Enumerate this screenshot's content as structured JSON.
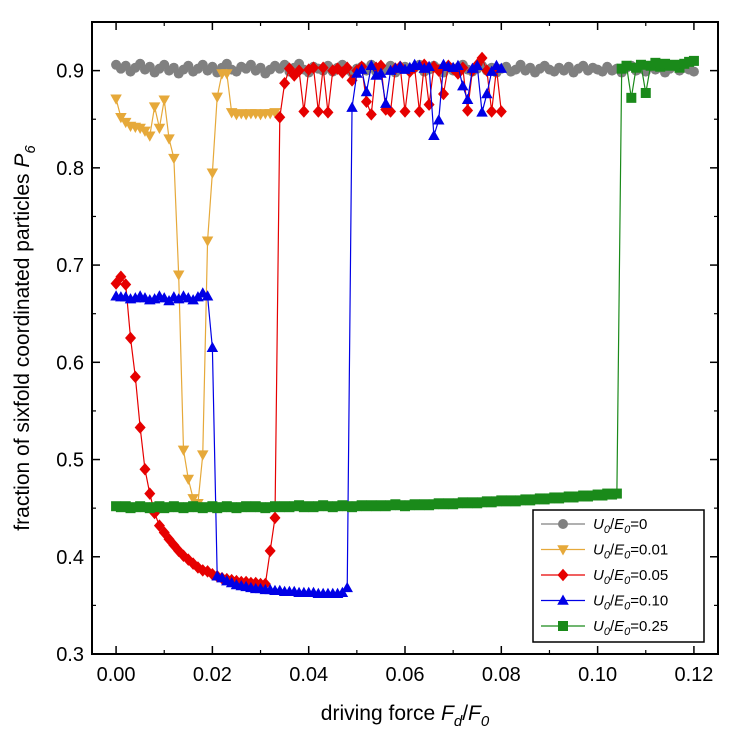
{
  "chart_data": {
    "type": "scatter",
    "xlabel": {
      "prefix": "driving force ",
      "main1": "F",
      "sub1": "d",
      "slash": "/",
      "main2": "F",
      "sub2": "0"
    },
    "ylabel": {
      "prefix": "fraction of sixfold coordinated particles ",
      "main": "P",
      "sub": "6"
    },
    "xlim": [
      -0.005,
      0.125
    ],
    "ylim": [
      0.3,
      0.95
    ],
    "xticks": [
      "0.00",
      "0.02",
      "0.04",
      "0.06",
      "0.08",
      "0.10",
      "0.12"
    ],
    "yticks": [
      "0.3",
      "0.4",
      "0.5",
      "0.6",
      "0.7",
      "0.8",
      "0.9"
    ],
    "legend_position": "bottom-right",
    "series": [
      {
        "name": "U0/E0=0",
        "legend": {
          "a": "U",
          "as": "0",
          "b": "E",
          "bs": "0",
          "val": "=0"
        },
        "color": "#808080",
        "marker": "circle",
        "x": [
          0.0,
          0.001,
          0.002,
          0.003,
          0.004,
          0.005,
          0.006,
          0.007,
          0.008,
          0.009,
          0.01,
          0.011,
          0.012,
          0.013,
          0.014,
          0.015,
          0.016,
          0.017,
          0.018,
          0.019,
          0.02,
          0.021,
          0.022,
          0.023,
          0.024,
          0.025,
          0.026,
          0.027,
          0.028,
          0.029,
          0.03,
          0.031,
          0.032,
          0.033,
          0.034,
          0.035,
          0.036,
          0.037,
          0.038,
          0.039,
          0.04,
          0.041,
          0.042,
          0.043,
          0.044,
          0.045,
          0.046,
          0.047,
          0.048,
          0.049,
          0.05,
          0.051,
          0.052,
          0.053,
          0.054,
          0.055,
          0.056,
          0.057,
          0.058,
          0.059,
          0.06,
          0.061,
          0.062,
          0.063,
          0.064,
          0.065,
          0.066,
          0.067,
          0.068,
          0.069,
          0.07,
          0.071,
          0.072,
          0.073,
          0.074,
          0.075,
          0.076,
          0.077,
          0.078,
          0.079,
          0.08,
          0.081,
          0.082,
          0.083,
          0.084,
          0.085,
          0.086,
          0.087,
          0.088,
          0.089,
          0.09,
          0.091,
          0.092,
          0.093,
          0.094,
          0.095,
          0.096,
          0.097,
          0.098,
          0.099,
          0.1,
          0.101,
          0.102,
          0.103,
          0.104,
          0.105,
          0.106,
          0.107,
          0.108,
          0.109,
          0.11,
          0.111,
          0.112,
          0.113,
          0.114,
          0.115,
          0.116,
          0.117,
          0.118,
          0.119,
          0.12
        ],
        "y": [
          0.906,
          0.902,
          0.905,
          0.899,
          0.903,
          0.907,
          0.901,
          0.904,
          0.898,
          0.902,
          0.906,
          0.9,
          0.903,
          0.897,
          0.901,
          0.905,
          0.899,
          0.902,
          0.906,
          0.9,
          0.904,
          0.898,
          0.903,
          0.907,
          0.901,
          0.899,
          0.904,
          0.902,
          0.906,
          0.9,
          0.903,
          0.897,
          0.901,
          0.905,
          0.902,
          0.906,
          0.899,
          0.903,
          0.907,
          0.901,
          0.898,
          0.904,
          0.902,
          0.9,
          0.905,
          0.899,
          0.903,
          0.906,
          0.901,
          0.898,
          0.902,
          0.904,
          0.9,
          0.906,
          0.899,
          0.903,
          0.901,
          0.905,
          0.898,
          0.902,
          0.904,
          0.9,
          0.903,
          0.906,
          0.899,
          0.901,
          0.905,
          0.902,
          0.898,
          0.904,
          0.9,
          0.903,
          0.906,
          0.901,
          0.899,
          0.902,
          0.905,
          0.9,
          0.903,
          0.898,
          0.902,
          0.904,
          0.899,
          0.901,
          0.906,
          0.9,
          0.903,
          0.898,
          0.902,
          0.905,
          0.901,
          0.899,
          0.903,
          0.9,
          0.904,
          0.898,
          0.902,
          0.905,
          0.9,
          0.903,
          0.901,
          0.899,
          0.904,
          0.9,
          0.902,
          0.898,
          0.903,
          0.905,
          0.9,
          0.902,
          0.899,
          0.904,
          0.901,
          0.903,
          0.898,
          0.902,
          0.905,
          0.9,
          0.903,
          0.901,
          0.899
        ]
      },
      {
        "name": "U0/E0=0.01",
        "legend": {
          "a": "U",
          "as": "0",
          "b": "E",
          "bs": "0",
          "val": "=0.01"
        },
        "color": "#e6a93a",
        "marker": "triangle-down",
        "x": [
          0.0,
          0.001,
          0.002,
          0.003,
          0.004,
          0.005,
          0.006,
          0.007,
          0.008,
          0.009,
          0.01,
          0.011,
          0.012,
          0.013,
          0.014,
          0.015,
          0.016,
          0.017,
          0.018,
          0.019,
          0.02,
          0.021,
          0.022,
          0.023,
          0.024,
          0.025,
          0.026,
          0.027,
          0.028,
          0.029,
          0.03,
          0.031,
          0.032,
          0.033
        ],
        "y": [
          0.871,
          0.852,
          0.847,
          0.843,
          0.842,
          0.841,
          0.838,
          0.833,
          0.863,
          0.841,
          0.87,
          0.83,
          0.81,
          0.69,
          0.51,
          0.48,
          0.46,
          0.455,
          0.505,
          0.725,
          0.795,
          0.873,
          0.897,
          0.897,
          0.857,
          0.855,
          0.856,
          0.855,
          0.856,
          0.856,
          0.855,
          0.856,
          0.856,
          0.857
        ]
      },
      {
        "name": "U0/E0=0.05",
        "legend": {
          "a": "U",
          "as": "0",
          "b": "E",
          "bs": "0",
          "val": "=0.05"
        },
        "color": "#e60000",
        "marker": "diamond",
        "x": [
          0.0,
          0.001,
          0.002,
          0.003,
          0.004,
          0.005,
          0.006,
          0.007,
          0.008,
          0.009,
          0.01,
          0.011,
          0.012,
          0.013,
          0.014,
          0.015,
          0.016,
          0.017,
          0.018,
          0.019,
          0.02,
          0.021,
          0.022,
          0.023,
          0.024,
          0.025,
          0.026,
          0.027,
          0.028,
          0.029,
          0.03,
          0.031,
          0.032,
          0.033,
          0.034,
          0.035,
          0.036,
          0.037,
          0.038,
          0.039,
          0.04,
          0.041,
          0.042,
          0.043,
          0.044,
          0.045,
          0.046,
          0.047,
          0.048,
          0.049,
          0.05,
          0.051,
          0.052,
          0.053,
          0.054,
          0.055,
          0.056,
          0.057,
          0.058,
          0.059,
          0.06,
          0.061,
          0.062,
          0.063,
          0.064,
          0.065,
          0.066,
          0.067,
          0.068,
          0.069,
          0.07,
          0.071,
          0.072,
          0.073,
          0.074,
          0.075,
          0.076,
          0.077,
          0.078,
          0.079,
          0.08
        ],
        "y": [
          0.681,
          0.688,
          0.68,
          0.625,
          0.585,
          0.533,
          0.49,
          0.465,
          0.445,
          0.432,
          0.425,
          0.418,
          0.412,
          0.406,
          0.401,
          0.397,
          0.393,
          0.389,
          0.386,
          0.385,
          0.382,
          0.38,
          0.378,
          0.377,
          0.376,
          0.375,
          0.374,
          0.374,
          0.373,
          0.373,
          0.372,
          0.372,
          0.406,
          0.44,
          0.852,
          0.887,
          0.902,
          0.895,
          0.9,
          0.858,
          0.901,
          0.903,
          0.858,
          0.903,
          0.857,
          0.9,
          0.902,
          0.898,
          0.903,
          0.89,
          0.9,
          0.904,
          0.868,
          0.855,
          0.903,
          0.905,
          0.86,
          0.858,
          0.902,
          0.904,
          0.858,
          0.899,
          0.903,
          0.858,
          0.906,
          0.865,
          0.904,
          0.9,
          0.876,
          0.905,
          0.902,
          0.897,
          0.903,
          0.859,
          0.9,
          0.906,
          0.913,
          0.9,
          0.858,
          0.902,
          0.858
        ]
      },
      {
        "name": "U0/E0=0.10",
        "legend": {
          "a": "U",
          "as": "0",
          "b": "E",
          "bs": "0",
          "val": "=0.10"
        },
        "color": "#0000e6",
        "marker": "triangle-up",
        "x": [
          0.0,
          0.001,
          0.002,
          0.003,
          0.004,
          0.005,
          0.006,
          0.007,
          0.008,
          0.009,
          0.01,
          0.011,
          0.012,
          0.013,
          0.014,
          0.015,
          0.016,
          0.017,
          0.018,
          0.019,
          0.02,
          0.021,
          0.022,
          0.023,
          0.024,
          0.025,
          0.026,
          0.027,
          0.028,
          0.029,
          0.03,
          0.031,
          0.032,
          0.033,
          0.034,
          0.035,
          0.036,
          0.037,
          0.038,
          0.039,
          0.04,
          0.041,
          0.042,
          0.043,
          0.044,
          0.045,
          0.046,
          0.047,
          0.048,
          0.049,
          0.05,
          0.051,
          0.052,
          0.053,
          0.054,
          0.055,
          0.056,
          0.057,
          0.058,
          0.059,
          0.06,
          0.061,
          0.062,
          0.063,
          0.064,
          0.065,
          0.066,
          0.067,
          0.068,
          0.069,
          0.07,
          0.071,
          0.072,
          0.073,
          0.074,
          0.075,
          0.076,
          0.077,
          0.078,
          0.079,
          0.08
        ],
        "y": [
          0.668,
          0.667,
          0.667,
          0.665,
          0.666,
          0.668,
          0.666,
          0.664,
          0.665,
          0.668,
          0.666,
          0.663,
          0.667,
          0.665,
          0.668,
          0.666,
          0.664,
          0.667,
          0.671,
          0.668,
          0.615,
          0.38,
          0.378,
          0.375,
          0.373,
          0.371,
          0.37,
          0.369,
          0.368,
          0.367,
          0.367,
          0.366,
          0.366,
          0.365,
          0.365,
          0.364,
          0.364,
          0.364,
          0.363,
          0.363,
          0.363,
          0.363,
          0.362,
          0.362,
          0.362,
          0.362,
          0.362,
          0.363,
          0.368,
          0.862,
          0.897,
          0.901,
          0.878,
          0.905,
          0.895,
          0.897,
          0.866,
          0.9,
          0.902,
          0.904,
          0.901,
          0.903,
          0.906,
          0.905,
          0.902,
          0.904,
          0.833,
          0.849,
          0.906,
          0.904,
          0.903,
          0.905,
          0.884,
          0.87,
          0.902,
          0.905,
          0.857,
          0.876,
          0.899,
          0.905,
          0.902
        ]
      },
      {
        "name": "U0/E0=0.25",
        "legend": {
          "a": "U",
          "as": "0",
          "b": "E",
          "bs": "0",
          "val": "=0.25"
        },
        "color": "#1a8a1a",
        "marker": "square",
        "x": [
          0.0,
          0.001,
          0.002,
          0.003,
          0.004,
          0.005,
          0.006,
          0.007,
          0.008,
          0.009,
          0.01,
          0.011,
          0.012,
          0.013,
          0.014,
          0.015,
          0.016,
          0.017,
          0.018,
          0.019,
          0.02,
          0.021,
          0.022,
          0.023,
          0.024,
          0.025,
          0.026,
          0.027,
          0.028,
          0.029,
          0.03,
          0.031,
          0.032,
          0.033,
          0.034,
          0.035,
          0.036,
          0.037,
          0.038,
          0.039,
          0.04,
          0.041,
          0.042,
          0.043,
          0.044,
          0.045,
          0.046,
          0.047,
          0.048,
          0.049,
          0.05,
          0.051,
          0.052,
          0.053,
          0.054,
          0.055,
          0.056,
          0.057,
          0.058,
          0.059,
          0.06,
          0.061,
          0.062,
          0.063,
          0.064,
          0.065,
          0.066,
          0.067,
          0.068,
          0.069,
          0.07,
          0.071,
          0.072,
          0.073,
          0.074,
          0.075,
          0.076,
          0.077,
          0.078,
          0.079,
          0.08,
          0.081,
          0.082,
          0.083,
          0.084,
          0.085,
          0.086,
          0.087,
          0.088,
          0.089,
          0.09,
          0.091,
          0.092,
          0.093,
          0.094,
          0.095,
          0.096,
          0.097,
          0.098,
          0.099,
          0.1,
          0.101,
          0.102,
          0.103,
          0.104,
          0.105,
          0.106,
          0.107,
          0.108,
          0.109,
          0.11,
          0.111,
          0.112,
          0.113,
          0.114,
          0.115,
          0.116,
          0.117,
          0.118,
          0.119,
          0.12
        ],
        "y": [
          0.452,
          0.451,
          0.452,
          0.45,
          0.451,
          0.452,
          0.451,
          0.45,
          0.451,
          0.452,
          0.45,
          0.451,
          0.452,
          0.451,
          0.45,
          0.451,
          0.452,
          0.451,
          0.45,
          0.451,
          0.452,
          0.45,
          0.451,
          0.452,
          0.451,
          0.45,
          0.451,
          0.452,
          0.451,
          0.452,
          0.451,
          0.45,
          0.451,
          0.452,
          0.451,
          0.452,
          0.451,
          0.452,
          0.453,
          0.451,
          0.452,
          0.451,
          0.452,
          0.453,
          0.452,
          0.451,
          0.452,
          0.453,
          0.452,
          0.451,
          0.452,
          0.453,
          0.452,
          0.453,
          0.452,
          0.453,
          0.452,
          0.453,
          0.454,
          0.453,
          0.452,
          0.453,
          0.454,
          0.453,
          0.454,
          0.453,
          0.454,
          0.455,
          0.454,
          0.455,
          0.454,
          0.455,
          0.456,
          0.455,
          0.456,
          0.455,
          0.456,
          0.457,
          0.456,
          0.457,
          0.458,
          0.457,
          0.458,
          0.457,
          0.458,
          0.459,
          0.458,
          0.459,
          0.46,
          0.459,
          0.46,
          0.461,
          0.46,
          0.461,
          0.462,
          0.461,
          0.462,
          0.463,
          0.462,
          0.463,
          0.464,
          0.463,
          0.465,
          0.464,
          0.465,
          0.902,
          0.905,
          0.872,
          0.903,
          0.906,
          0.877,
          0.905,
          0.908,
          0.904,
          0.907,
          0.905,
          0.906,
          0.903,
          0.907,
          0.909,
          0.91
        ]
      }
    ]
  }
}
